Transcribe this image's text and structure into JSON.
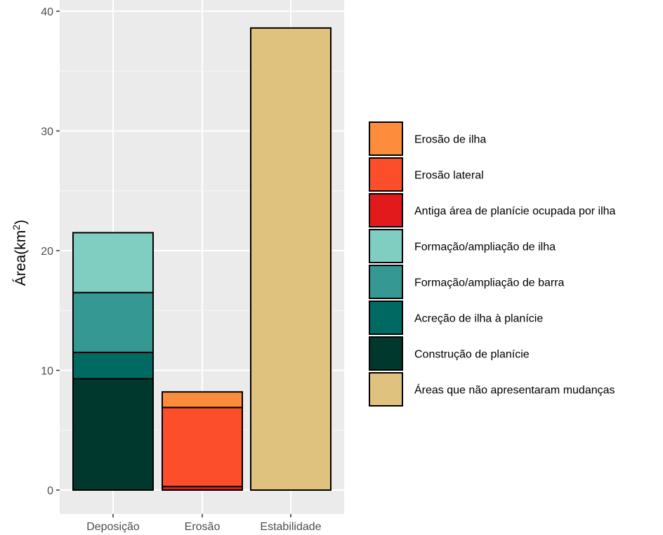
{
  "chart_data": {
    "type": "bar",
    "stacked": true,
    "categories": [
      "Deposição",
      "Erosão",
      "Estabilidade"
    ],
    "ylabel": "Área(km²)",
    "ylabel_base": "Área(km",
    "ylabel_sup": "2",
    "ylabel_close": ")",
    "xlabel": "",
    "ylim": [
      0,
      40
    ],
    "yticks": [
      0,
      10,
      20,
      30,
      40
    ],
    "grid": true,
    "legend_position": "right",
    "series": [
      {
        "name": "Construção de planície",
        "color": "#01382D",
        "values": [
          9.3,
          0,
          0
        ]
      },
      {
        "name": "Acreção de ilha à planície",
        "color": "#006A62",
        "values": [
          2.2,
          0,
          0
        ]
      },
      {
        "name": "Formação/ampliação de barra",
        "color": "#359893",
        "values": [
          5.0,
          0,
          0
        ]
      },
      {
        "name": "Formação/ampliação de ilha",
        "color": "#80CDC1",
        "values": [
          5.0,
          0,
          0
        ]
      },
      {
        "name": "Antiga área de planície ocupada por ilha",
        "color": "#E31A1C",
        "values": [
          0,
          0.3,
          0
        ]
      },
      {
        "name": "Erosão lateral",
        "color": "#FC4E2A",
        "values": [
          0,
          6.6,
          0
        ]
      },
      {
        "name": "Erosão de ilha",
        "color": "#FD8D3C",
        "values": [
          0,
          1.3,
          0
        ]
      },
      {
        "name": "Áreas que não apresentaram mudanças",
        "color": "#DFC27D",
        "values": [
          0,
          0,
          38.6
        ]
      }
    ],
    "legend_order": [
      "Erosão de ilha",
      "Erosão lateral",
      "Antiga área de planície ocupada por ilha",
      "Formação/ampliação de ilha",
      "Formação/ampliação de barra",
      "Acreção de ilha à planície",
      "Construção de planície",
      "Áreas que não apresentaram mudanças"
    ]
  }
}
